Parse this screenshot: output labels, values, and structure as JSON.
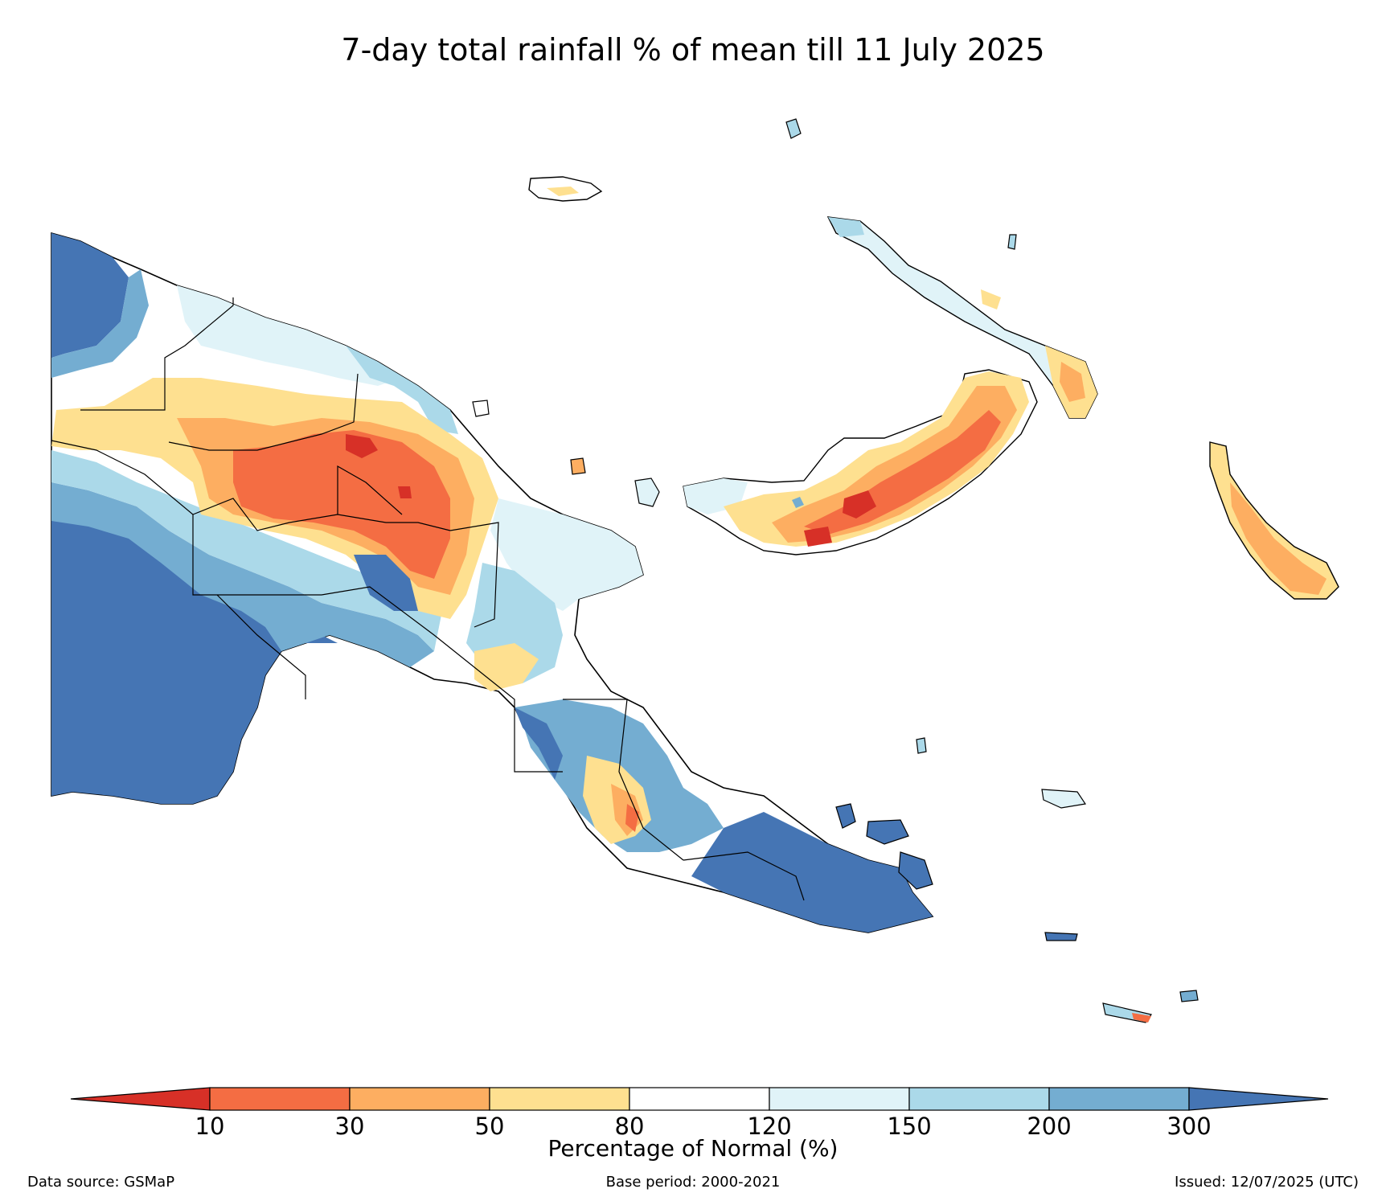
{
  "title": "7-day total rainfall % of mean till 11 July 2025",
  "legend": {
    "label": "Percentage of Normal (%)",
    "ticks": [
      "10",
      "30",
      "50",
      "80",
      "120",
      "150",
      "200",
      "300"
    ],
    "bins": [
      {
        "range": "<10",
        "color": "#d73027"
      },
      {
        "range": "10-30",
        "color": "#f46d43"
      },
      {
        "range": "30-50",
        "color": "#fdae61"
      },
      {
        "range": "50-80",
        "color": "#fee090"
      },
      {
        "range": "80-120",
        "color": "#ffffff"
      },
      {
        "range": "120-150",
        "color": "#e0f3f8"
      },
      {
        "range": "150-200",
        "color": "#abd9e9"
      },
      {
        "range": "200-300",
        "color": "#74add1"
      },
      {
        "range": ">300",
        "color": "#4575b4"
      }
    ]
  },
  "footer": {
    "source": "Data source: GSMaP",
    "base_period": "Base period: 2000-2021",
    "issued": "Issued: 12/07/2025 (UTC)"
  }
}
